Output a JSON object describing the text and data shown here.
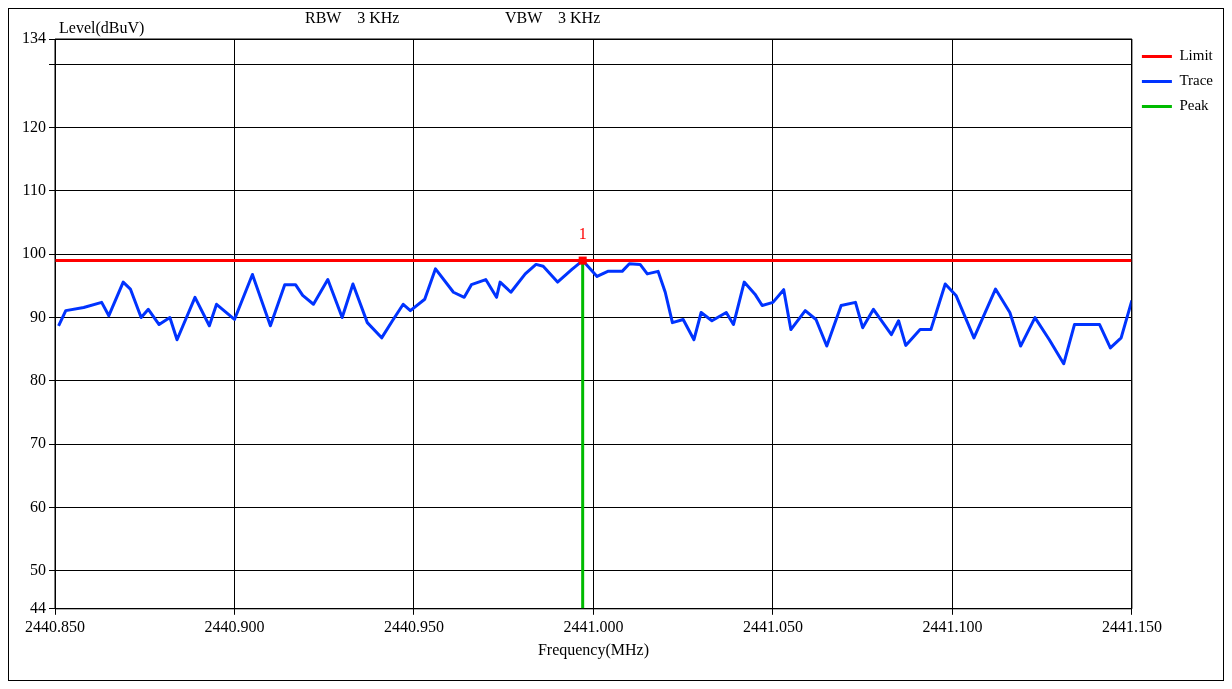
{
  "chart_data": {
    "type": "line",
    "xlabel": "Frequency(MHz)",
    "ylabel": "Level(dBuV)",
    "annotations": [
      "RBW    3 KHz",
      "VBW    3 KHz",
      {
        "text": "1",
        "x": 2440.997,
        "y": 99
      }
    ],
    "xlim": [
      2440.85,
      2441.15
    ],
    "xticks": [
      {
        "value": 2440.85,
        "label": "2440.850"
      },
      {
        "value": 2440.9,
        "label": "2440.900"
      },
      {
        "value": 2440.95,
        "label": "2440.950"
      },
      {
        "value": 2441.0,
        "label": "2441.000"
      },
      {
        "value": 2441.05,
        "label": "2441.050"
      },
      {
        "value": 2441.1,
        "label": "2441.100"
      },
      {
        "value": 2441.15,
        "label": "2441.150"
      }
    ],
    "ylim": [
      44,
      134
    ],
    "yticks": [
      44,
      50,
      60,
      70,
      80,
      90,
      100,
      110,
      120,
      {
        "value": 130,
        "label": null
      },
      134
    ],
    "grid": true,
    "legend": "right",
    "marker": "none",
    "line_style": "solid",
    "series": [
      {
        "name": "Limit",
        "color": "#ff0000",
        "x": [
          2440.85,
          2441.15
        ],
        "values": [
          99,
          99
        ]
      },
      {
        "name": "Trace",
        "color": "#0033ff",
        "x": [
          2440.851,
          2440.853,
          2440.858,
          2440.863,
          2440.865,
          2440.869,
          2440.871,
          2440.874,
          2440.876,
          2440.879,
          2440.882,
          2440.884,
          2440.889,
          2440.893,
          2440.895,
          2440.9,
          2440.905,
          2440.91,
          2440.914,
          2440.917,
          2440.919,
          2440.922,
          2440.926,
          2440.93,
          2440.933,
          2440.937,
          2440.941,
          2440.944,
          2440.947,
          2440.949,
          2440.953,
          2440.956,
          2440.961,
          2440.964,
          2440.966,
          2440.97,
          2440.973,
          2440.974,
          2440.977,
          2440.981,
          2440.984,
          2440.986,
          2440.99,
          2440.994,
          2440.997,
          2441.001,
          2441.004,
          2441.008,
          2441.01,
          2441.013,
          2441.015,
          2441.018,
          2441.02,
          2441.022,
          2441.025,
          2441.028,
          2441.03,
          2441.033,
          2441.037,
          2441.039,
          2441.042,
          2441.045,
          2441.047,
          2441.05,
          2441.053,
          2441.055,
          2441.059,
          2441.062,
          2441.065,
          2441.069,
          2441.073,
          2441.075,
          2441.078,
          2441.083,
          2441.085,
          2441.087,
          2441.091,
          2441.094,
          2441.098,
          2441.101,
          2441.106,
          2441.112,
          2441.116,
          2441.119,
          2441.123,
          2441.127,
          2441.131,
          2441.134,
          2441.141,
          2441.144,
          2441.147,
          2441.15
        ],
        "values": [
          88.7,
          91.1,
          91.6,
          92.4,
          90.3,
          95.6,
          94.5,
          90,
          91.3,
          88.9,
          90,
          86.5,
          93.2,
          88.7,
          92.1,
          89.7,
          96.8,
          88.7,
          95.2,
          95.2,
          93.5,
          92.1,
          96,
          90,
          95.3,
          89.2,
          86.8,
          89.5,
          92.1,
          91.1,
          92.9,
          97.7,
          94,
          93.2,
          95.2,
          96,
          93.2,
          95.6,
          94,
          96.9,
          98.4,
          98.1,
          95.6,
          97.6,
          99,
          96.5,
          97.3,
          97.3,
          98.5,
          98.4,
          96.9,
          97.3,
          94,
          89.2,
          89.7,
          86.5,
          90.8,
          89.5,
          90.8,
          88.9,
          95.6,
          93.7,
          91.9,
          92.4,
          94.4,
          88.1,
          91.1,
          89.7,
          85.5,
          91.9,
          92.4,
          88.4,
          91.3,
          87.3,
          89.5,
          85.6,
          88.1,
          88.1,
          95.3,
          93.5,
          86.8,
          94.5,
          90.8,
          85.5,
          90,
          86.5,
          82.7,
          88.9,
          88.9,
          85.2,
          86.8,
          92.7
        ]
      },
      {
        "name": "Peak",
        "color": "#00bb00",
        "x": [
          2440.997,
          2440.997
        ],
        "values": [
          44,
          99
        ]
      }
    ]
  }
}
